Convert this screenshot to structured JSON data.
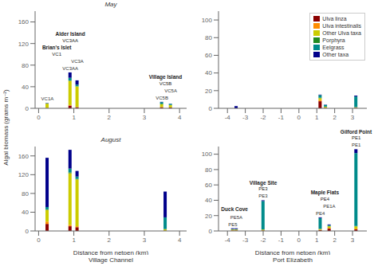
{
  "chart_data": [
    {
      "type": "bar",
      "stacked": true,
      "title": "May",
      "ylabel": "Algal biomass (grams m⁻²)",
      "x": [
        0.25,
        0.9,
        1.1,
        3.5,
        3.75
      ],
      "bar_labels": [
        "VC1A",
        "VC3AA",
        "VC3A",
        "VC5B",
        "VC5A"
      ],
      "series": [
        {
          "name": "Ulva linza",
          "color": "#8B0000",
          "values": [
            0.5,
            5,
            2,
            2,
            1.5
          ]
        },
        {
          "name": "Ulva intestinalis",
          "color": "#FF8C00",
          "values": [
            0.2,
            1,
            0.5,
            0.5,
            0.3
          ]
        },
        {
          "name": "Other Ulva taxa",
          "color": "#CCCC00",
          "values": [
            8,
            45,
            38,
            5,
            4
          ]
        },
        {
          "name": "Porphyra",
          "color": "#228B22",
          "values": [
            0.1,
            0.5,
            0.3,
            1,
            0.5
          ]
        },
        {
          "name": "Eelgrass",
          "color": "#008B8B",
          "values": [
            0.5,
            5,
            3,
            3,
            2
          ]
        },
        {
          "name": "Other taxa",
          "color": "#00008B",
          "values": [
            0.5,
            10,
            8,
            0.5,
            0.3
          ]
        }
      ],
      "annotations": [
        {
          "x": 0.25,
          "text": [
            "Brian's Islet",
            "VC1"
          ]
        },
        {
          "x": 0.9,
          "text": [
            "Alder Island",
            "VC3AA"
          ]
        },
        {
          "x": 3.6,
          "text": [
            "Village Island",
            "VC5B"
          ]
        }
      ],
      "xlim": [
        -0.1,
        4.2
      ],
      "xticks": [
        0,
        1,
        2,
        3,
        4
      ],
      "ylim": [
        0,
        180
      ],
      "yticks": [
        0,
        40,
        80,
        120,
        160
      ]
    },
    {
      "type": "bar",
      "stacked": true,
      "legend": "upper right",
      "x": [
        -3.5,
        1.2,
        1.5,
        3.2
      ],
      "series": [
        {
          "name": "Ulva linza",
          "color": "#8B0000",
          "values": [
            0,
            8,
            0.5,
            0.5
          ]
        },
        {
          "name": "Ulva intestinalis",
          "color": "#FF8C00",
          "values": [
            0,
            1.5,
            0.2,
            0.2
          ]
        },
        {
          "name": "Other Ulva taxa",
          "color": "#CCCC00",
          "values": [
            0,
            2,
            1,
            0.5
          ]
        },
        {
          "name": "Porphyra",
          "color": "#228B22",
          "values": [
            0,
            0.5,
            0.2,
            0.2
          ]
        },
        {
          "name": "Eelgrass",
          "color": "#008B8B",
          "values": [
            0,
            3,
            2,
            12
          ]
        },
        {
          "name": "Other taxa",
          "color": "#00008B",
          "values": [
            2.5,
            0.5,
            0.3,
            1
          ]
        }
      ],
      "xlim": [
        -4.5,
        3.8
      ],
      "xticks": [
        -4,
        -3,
        -2,
        -1,
        0,
        1,
        2,
        3
      ],
      "ylim": [
        0,
        110
      ],
      "yticks": [
        0,
        20,
        40,
        60,
        80,
        100
      ]
    },
    {
      "type": "bar",
      "stacked": true,
      "title": "August",
      "xlabel": "Distance from netpen (km)",
      "subtitle": "Village Channel",
      "x": [
        0.25,
        0.9,
        1.1,
        3.6
      ],
      "series": [
        {
          "name": "Ulva linza",
          "color": "#8B0000",
          "values": [
            15,
            10,
            8,
            0.5
          ]
        },
        {
          "name": "Ulva intestinalis",
          "color": "#FF8C00",
          "values": [
            5,
            3,
            2,
            0.3
          ]
        },
        {
          "name": "Other Ulva taxa",
          "color": "#CCCC00",
          "values": [
            25,
            110,
            100,
            3
          ]
        },
        {
          "name": "Porphyra",
          "color": "#228B22",
          "values": [
            1,
            2,
            1,
            0.2
          ]
        },
        {
          "name": "Eelgrass",
          "color": "#008B8B",
          "values": [
            5,
            8,
            5,
            25
          ]
        },
        {
          "name": "Other taxa",
          "color": "#00008B",
          "values": [
            105,
            40,
            12,
            55
          ]
        }
      ],
      "xlim": [
        -0.1,
        4.2
      ],
      "xticks": [
        0,
        1,
        2,
        3,
        4
      ],
      "ylim": [
        0,
        180
      ],
      "yticks": [
        0,
        40,
        80,
        120,
        160
      ]
    },
    {
      "type": "bar",
      "stacked": true,
      "xlabel": "Distance from netpen (km)",
      "subtitle": "Port Elizabeth",
      "x": [
        -3.7,
        -3.5,
        -2.0,
        1.2,
        1.7,
        3.2
      ],
      "bar_labels": [
        "PE5",
        "PE5A",
        "PE3",
        "PE4",
        "PE1A",
        "PE1"
      ],
      "series": [
        {
          "name": "Ulva linza",
          "color": "#8B0000",
          "values": [
            0.5,
            0.5,
            0.5,
            1,
            3,
            2
          ]
        },
        {
          "name": "Ulva intestinalis",
          "color": "#FF8C00",
          "values": [
            0.3,
            0.3,
            0.3,
            0.5,
            1,
            1
          ]
        },
        {
          "name": "Other Ulva taxa",
          "color": "#CCCC00",
          "values": [
            1,
            1,
            1,
            1,
            2,
            3
          ]
        },
        {
          "name": "Porphyra",
          "color": "#228B22",
          "values": [
            0.2,
            0.2,
            0.2,
            0.3,
            0.5,
            0.5
          ]
        },
        {
          "name": "Eelgrass",
          "color": "#008B8B",
          "values": [
            0.5,
            0.5,
            37,
            14,
            1,
            95
          ]
        },
        {
          "name": "Other taxa",
          "color": "#00008B",
          "values": [
            1,
            1,
            1,
            1,
            1,
            5
          ]
        }
      ],
      "annotations": [
        {
          "x": -3.6,
          "text": [
            "Duck Cove"
          ]
        },
        {
          "x": -2.0,
          "text": [
            "Village Site",
            "PE3"
          ]
        },
        {
          "x": 1.45,
          "text": [
            "Maple Flats",
            "PE4"
          ]
        },
        {
          "x": 3.2,
          "text": [
            "Gilford Point",
            "PE1"
          ]
        }
      ],
      "xlim": [
        -4.5,
        3.8
      ],
      "xticks": [
        -4,
        -3,
        -2,
        -1,
        0,
        1,
        2,
        3
      ],
      "ylim": [
        0,
        110
      ],
      "yticks": [
        0,
        20,
        40,
        60,
        80,
        100
      ]
    }
  ]
}
